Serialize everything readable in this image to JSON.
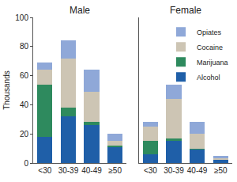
{
  "chart_data": [
    {
      "type": "bar",
      "title": "Male",
      "stacked": true,
      "grid": false,
      "y_label": "Thousands",
      "categories": [
        "<30",
        "30-39",
        "40-49",
        "≥50"
      ],
      "series": [
        {
          "name": "Alcohol",
          "color": "#1f5fa8",
          "values": [
            18,
            32,
            26,
            11
          ]
        },
        {
          "name": "Marijuana",
          "color": "#2e8a5e",
          "values": [
            36,
            6,
            2,
            1
          ]
        },
        {
          "name": "Cocaine",
          "color": "#cdc5b4",
          "values": [
            10,
            34,
            21,
            3
          ]
        },
        {
          "name": "Opiates",
          "color": "#8fa8d8",
          "values": [
            5,
            12,
            15,
            5
          ]
        }
      ],
      "ylim": [
        0,
        100
      ],
      "yticks": [
        0,
        20,
        40,
        60,
        80,
        100
      ]
    },
    {
      "type": "bar",
      "title": "Female",
      "stacked": true,
      "grid": false,
      "legend": "top right",
      "tick_labels": "x",
      "categories": [
        "<30",
        "30-39",
        "40-49",
        "≥50"
      ],
      "series": [
        {
          "name": "Alcohol",
          "color": "#1f5fa8",
          "values": [
            6,
            15,
            9,
            2
          ]
        },
        {
          "name": "Marijuana",
          "color": "#2e8a5e",
          "values": [
            9,
            2,
            1,
            0
          ]
        },
        {
          "name": "Cocaine",
          "color": "#cdc5b4",
          "values": [
            10,
            27,
            10,
            1
          ]
        },
        {
          "name": "Opiates",
          "color": "#8fa8d8",
          "values": [
            3,
            10,
            8,
            2
          ]
        }
      ],
      "ylim": [
        0,
        100
      ],
      "yticks": [
        0,
        20,
        40,
        60,
        80,
        100
      ]
    }
  ]
}
